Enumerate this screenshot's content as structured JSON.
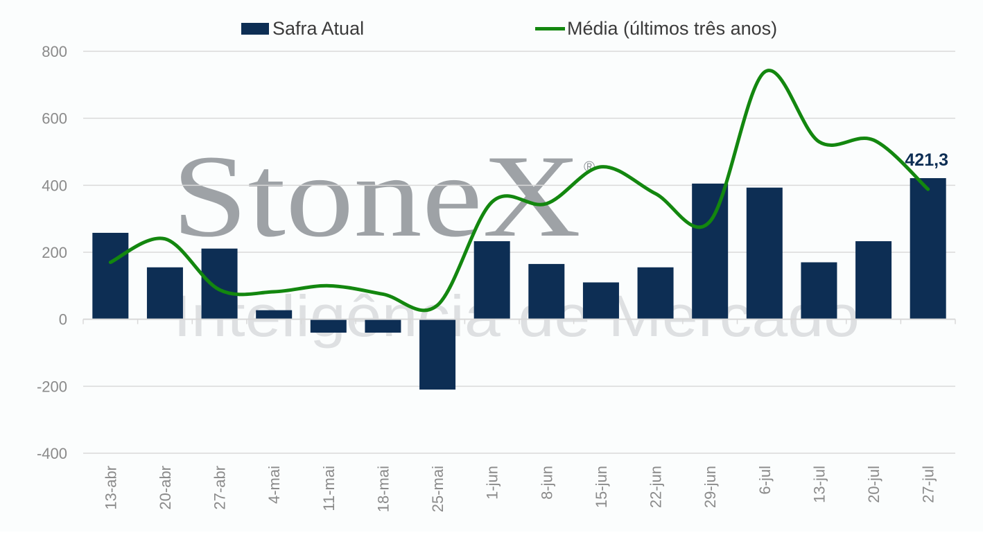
{
  "watermark": {
    "brand": "StoneX",
    "registered": "®",
    "subtitle": "Inteligência de Mercado"
  },
  "colors": {
    "bar": "#0d2e54",
    "line": "#13870f",
    "grid": "#d9d9d9",
    "data_label": "#0d2e54"
  },
  "chart_data": {
    "type": "bar",
    "categories": [
      "13-abr",
      "20-abr",
      "27-abr",
      "4-mai",
      "11-mai",
      "18-mai",
      "25-mai",
      "1-jun",
      "8-jun",
      "15-jun",
      "22-jun",
      "29-jun",
      "6-jul",
      "13-jul",
      "20-jul",
      "27-jul"
    ],
    "series": [
      {
        "name": "Safra Atual",
        "type": "bar",
        "values": [
          258,
          155,
          211,
          27,
          -40,
          -40,
          -210,
          233,
          165,
          110,
          155,
          405,
          393,
          170,
          233,
          421.3
        ]
      },
      {
        "name": "Média (últimos três anos)",
        "type": "line",
        "smooth": true,
        "values": [
          170,
          240,
          88,
          82,
          100,
          75,
          42,
          350,
          345,
          455,
          375,
          292,
          738,
          530,
          535,
          388
        ]
      }
    ],
    "ylim": [
      -400,
      800
    ],
    "yticks": [
      "800",
      "600",
      "400",
      "200",
      "0",
      "-200",
      "-400"
    ],
    "xlabel": "",
    "ylabel": "",
    "grid": true,
    "legend_position": "top-center",
    "annotations": [
      {
        "category": "27-jul",
        "text": "421,3"
      }
    ]
  }
}
